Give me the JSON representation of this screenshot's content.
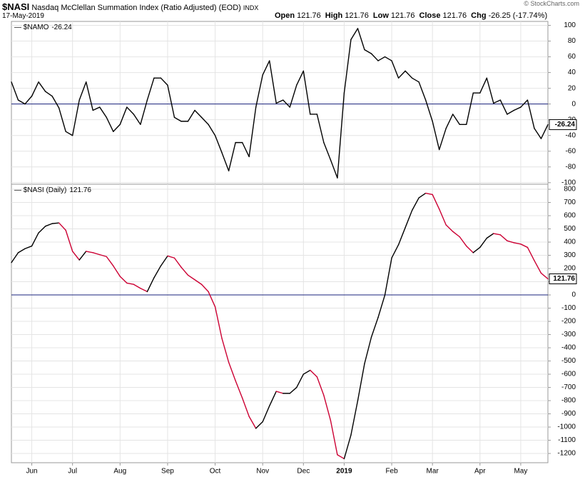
{
  "header": {
    "title": "$NASI",
    "subtitle": "Nasdaq McClellan Summation Index (Ratio Adjusted) (EOD)",
    "exchange": "INDX",
    "date": "17-May-2019",
    "credit": "© StockCharts.com",
    "quote": [
      {
        "label": "Open",
        "text": "121.76"
      },
      {
        "label": "High",
        "text": "121.76"
      },
      {
        "label": "Low",
        "text": "121.76"
      },
      {
        "label": "Close",
        "text": "121.76"
      },
      {
        "label": "Chg",
        "text": "-26.25 (-17.74%)"
      }
    ]
  },
  "chart_data": [
    {
      "type": "line",
      "series": [
        {
          "name": "$NAMO",
          "color": "#000000",
          "values": [
            28,
            5,
            0,
            10,
            28,
            16,
            10,
            -5,
            -35,
            -40,
            5,
            28,
            -8,
            -4,
            -17,
            -35,
            -26,
            -4,
            -13,
            -26,
            5,
            33,
            33,
            24,
            -17,
            -22,
            -22,
            -8,
            -17,
            -26,
            -40,
            -62,
            -85,
            -49,
            -49,
            -67,
            -4,
            37,
            55,
            1,
            5,
            -4,
            24,
            42,
            -13,
            -13,
            -49,
            -71,
            -94,
            14,
            82,
            96,
            69,
            64,
            55,
            60,
            55,
            33,
            42,
            33,
            28,
            5,
            -22,
            -58,
            -31,
            -13,
            -26,
            -26,
            14,
            14,
            33,
            1,
            5,
            -13,
            -8,
            -4,
            5,
            -31,
            -44,
            -26.24
          ]
        }
      ],
      "ylim": [
        -102,
        105
      ],
      "yticks": [
        100,
        80,
        60,
        40,
        20,
        0,
        -20,
        -40,
        -60,
        -80,
        -100
      ],
      "grid": true,
      "zero_line_color": "#1a237e"
    },
    {
      "type": "line",
      "series": [
        {
          "name": "$NASI (Daily)",
          "color": "#000000",
          "down_color": "#cc0033",
          "values": [
            245,
            320,
            350,
            370,
            470,
            520,
            540,
            545,
            490,
            330,
            265,
            330,
            320,
            305,
            290,
            220,
            140,
            90,
            80,
            50,
            25,
            130,
            220,
            295,
            280,
            210,
            150,
            115,
            80,
            25,
            -90,
            -330,
            -510,
            -650,
            -780,
            -920,
            -1010,
            -960,
            -840,
            -730,
            -745,
            -745,
            -700,
            -600,
            -570,
            -620,
            -760,
            -950,
            -1210,
            -1240,
            -1060,
            -800,
            -520,
            -320,
            -170,
            0,
            280,
            380,
            510,
            640,
            735,
            770,
            760,
            650,
            530,
            480,
            440,
            370,
            320,
            360,
            430,
            465,
            455,
            410,
            395,
            385,
            360,
            260,
            165,
            121.76
          ]
        }
      ],
      "categories": [
        null,
        null,
        null,
        "Jun",
        null,
        null,
        null,
        null,
        null,
        "Jul",
        null,
        null,
        null,
        null,
        null,
        null,
        "Aug",
        null,
        null,
        null,
        null,
        null,
        null,
        "Sep",
        null,
        null,
        null,
        null,
        null,
        null,
        "Oct",
        null,
        null,
        null,
        null,
        null,
        null,
        "Nov",
        null,
        null,
        null,
        null,
        null,
        "Dec",
        null,
        null,
        null,
        null,
        null,
        "2019",
        null,
        null,
        null,
        null,
        null,
        null,
        "Feb",
        null,
        null,
        null,
        null,
        null,
        "Mar",
        null,
        null,
        null,
        null,
        null,
        null,
        "Apr",
        null,
        null,
        null,
        null,
        null,
        "May",
        null,
        null,
        null,
        null
      ],
      "ylim": [
        -1270,
        838
      ],
      "yticks": [
        800,
        700,
        600,
        500,
        400,
        300,
        200,
        100,
        0,
        -100,
        -200,
        -300,
        -400,
        -500,
        -600,
        -700,
        -800,
        -900,
        -1000,
        -1100,
        -1200
      ],
      "grid": true,
      "zero_line_color": "#1a237e"
    }
  ]
}
